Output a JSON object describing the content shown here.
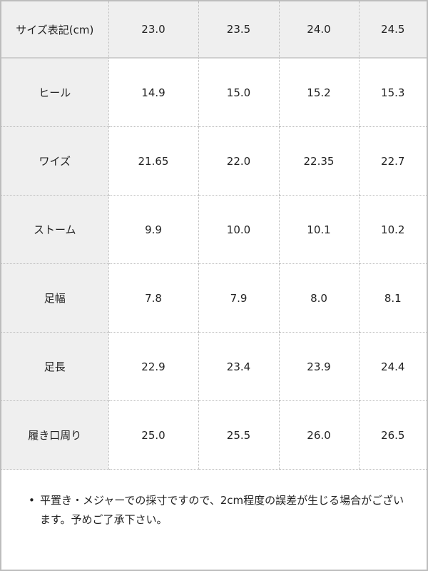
{
  "header": {
    "label": "サイズ表記(cm)",
    "sizes": [
      "23.0",
      "23.5",
      "24.0",
      "24.5"
    ]
  },
  "rows": [
    {
      "label": "ヒール",
      "values": [
        "14.9",
        "15.0",
        "15.2",
        "15.3"
      ]
    },
    {
      "label": "ワイズ",
      "values": [
        "21.65",
        "22.0",
        "22.35",
        "22.7"
      ]
    },
    {
      "label": "ストーム",
      "values": [
        "9.9",
        "10.0",
        "10.1",
        "10.2"
      ]
    },
    {
      "label": "足幅",
      "values": [
        "7.8",
        "7.9",
        "8.0",
        "8.1"
      ]
    },
    {
      "label": "足長",
      "values": [
        "22.9",
        "23.4",
        "23.9",
        "24.4"
      ]
    },
    {
      "label": "履き口周り",
      "values": [
        "25.0",
        "25.5",
        "26.0",
        "26.5"
      ]
    }
  ],
  "note": {
    "bullet": "•",
    "text": "平置き・メジャーでの採寸ですので、2cm程度の誤差が生じる場合がございます。予めご了承下さい。"
  }
}
